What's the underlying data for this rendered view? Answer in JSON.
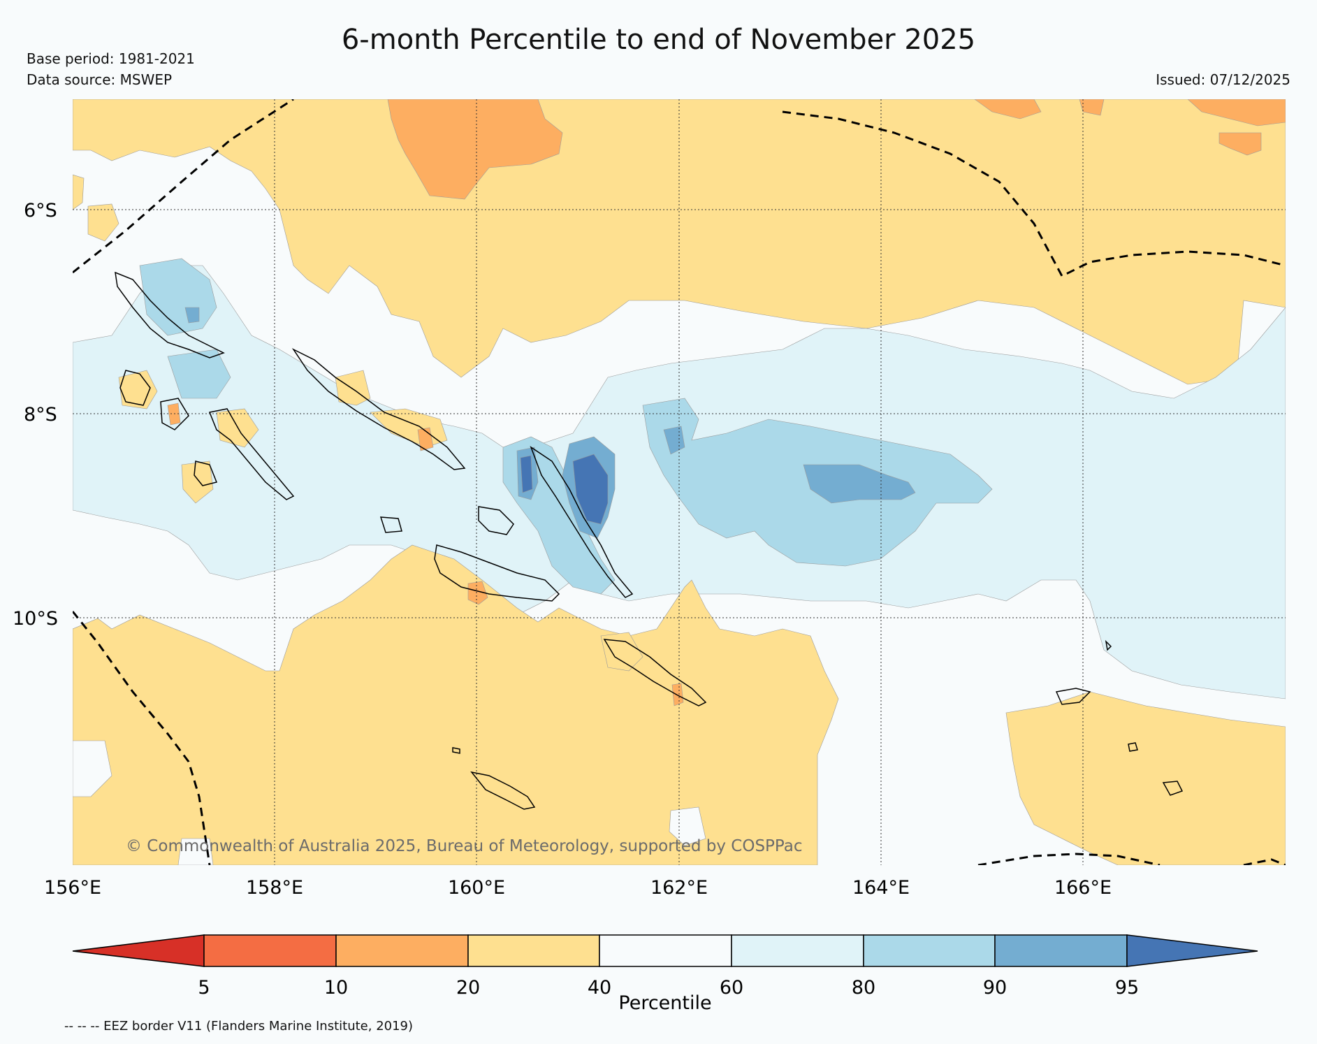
{
  "header": {
    "title": "6-month Percentile to end of November 2025",
    "base_period": "Base period: 1981-2021",
    "data_source": "Data source: MSWEP",
    "issued": "Issued: 07/12/2025"
  },
  "map": {
    "lat_labels": [
      "6°S",
      "8°S",
      "10°S"
    ],
    "lon_labels": [
      "156°E",
      "158°E",
      "160°E",
      "162°E",
      "164°E",
      "166°E"
    ],
    "credit": "© Commonwealth of Australia 2025, Bureau of Meteorology, supported by COSPPac"
  },
  "colorbar": {
    "label": "Percentile",
    "ticks": [
      "5",
      "10",
      "20",
      "40",
      "60",
      "80",
      "90",
      "95"
    ],
    "colors": [
      "#d73027",
      "#f46d43",
      "#fdae61",
      "#fee090",
      "#f8fbfc",
      "#e0f3f8",
      "#abd9e9",
      "#74add1",
      "#4575b4"
    ]
  },
  "footnote": "-- -- -- EEZ border V11 (Flanders Marine Institute, 2019)"
}
